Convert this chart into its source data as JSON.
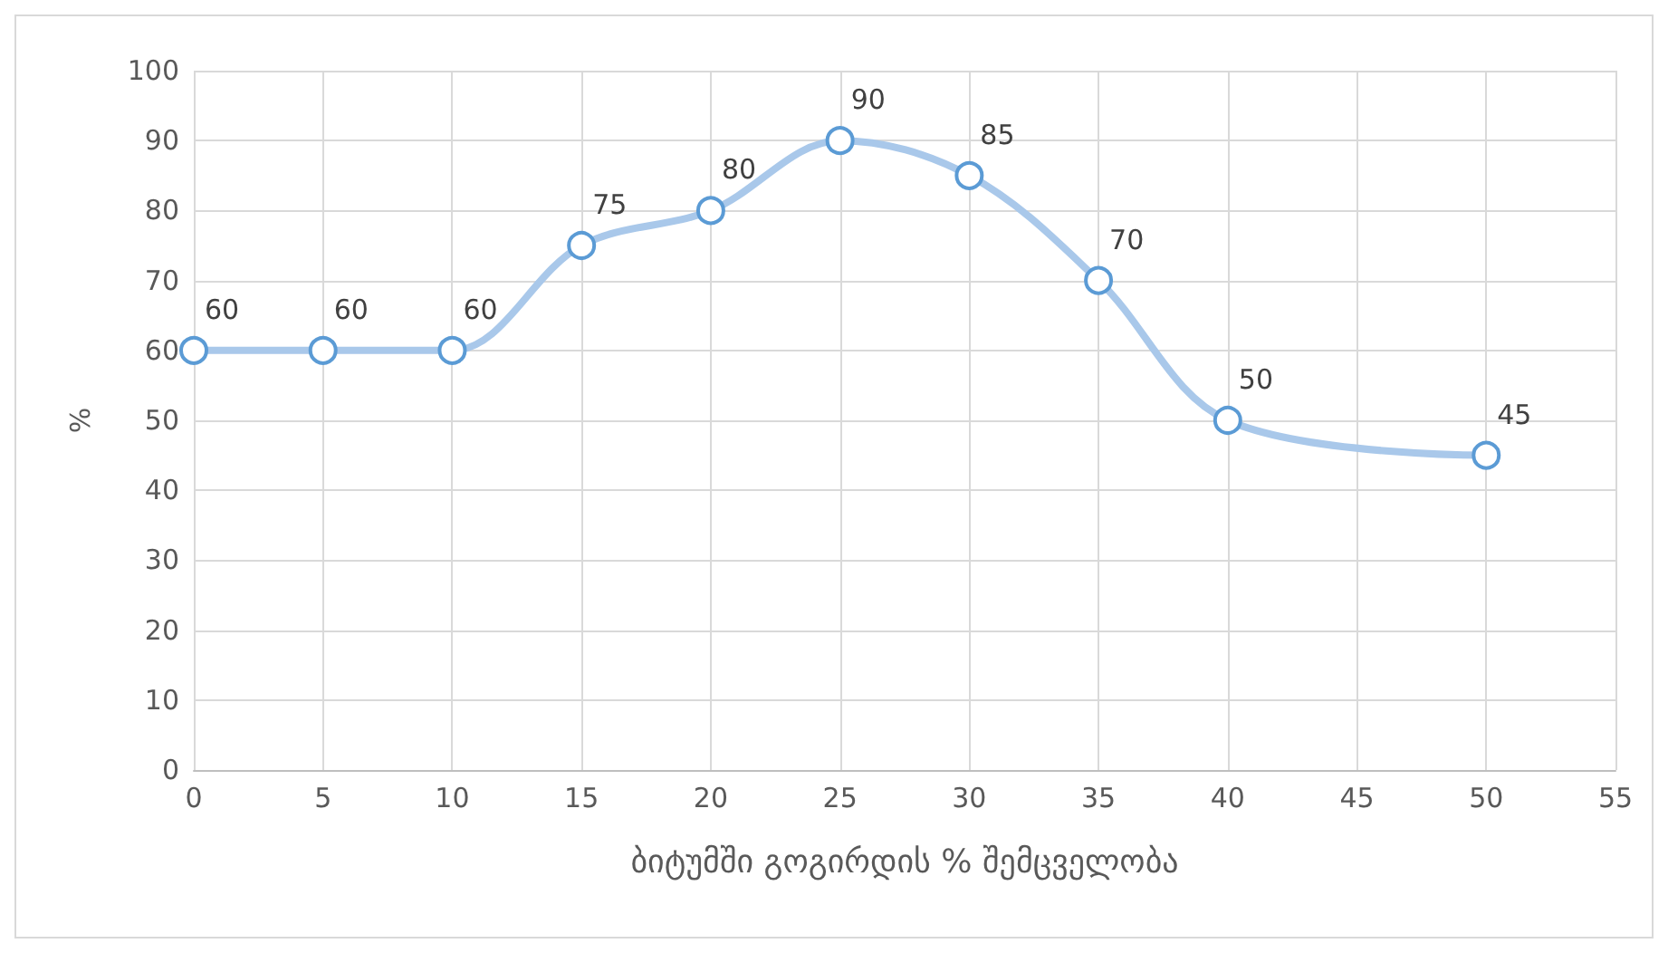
{
  "chart_data": {
    "type": "line",
    "xlabel": "ბიტუმში გოგირდის % შემცველობა",
    "ylabel": "%",
    "x": [
      0,
      5,
      10,
      15,
      20,
      25,
      30,
      35,
      40,
      50
    ],
    "series": [
      {
        "color": "#5b9bd5",
        "values": [
          60,
          60,
          60,
          75,
          80,
          90,
          85,
          70,
          50,
          45
        ]
      }
    ],
    "xlim": [
      0,
      55
    ],
    "xticks": [
      0,
      5,
      10,
      15,
      20,
      25,
      30,
      35,
      40,
      45,
      50,
      55
    ],
    "ylim": [
      0,
      100
    ],
    "yticks": [
      0,
      10,
      20,
      30,
      40,
      50,
      60,
      70,
      80,
      90,
      100
    ],
    "grid": true,
    "marker": "circle",
    "data_labels": true,
    "line_style": "solid"
  }
}
